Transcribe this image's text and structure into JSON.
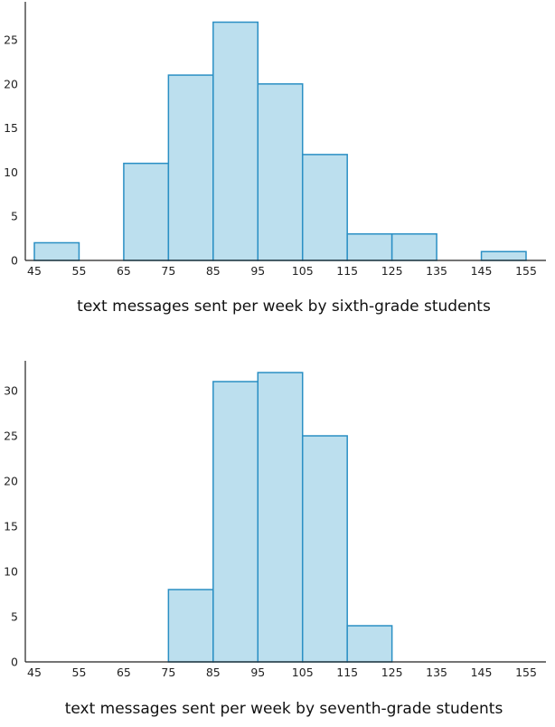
{
  "colors": {
    "bar_fill": "#bcdfee",
    "bar_stroke": "#2a8fc4",
    "axis": "#222222"
  },
  "chart_data": [
    {
      "type": "bar",
      "subtype": "histogram",
      "title": "",
      "xlabel": "text messages sent per week by sixth-grade students",
      "ylabel": "",
      "bin_edges": [
        45,
        55,
        65,
        75,
        85,
        95,
        105,
        115,
        125,
        135,
        145,
        155
      ],
      "x_ticks": [
        45,
        55,
        65,
        75,
        85,
        95,
        105,
        115,
        125,
        135,
        145,
        155
      ],
      "values": [
        2,
        0,
        11,
        21,
        27,
        20,
        12,
        3,
        3,
        0,
        1
      ],
      "y_ticks": [
        0,
        5,
        10,
        15,
        20,
        25
      ],
      "ylim": [
        0,
        29
      ],
      "grid": false
    },
    {
      "type": "bar",
      "subtype": "histogram",
      "title": "",
      "xlabel": "text messages sent per week by seventh-grade students",
      "ylabel": "",
      "bin_edges": [
        45,
        55,
        65,
        75,
        85,
        95,
        105,
        115,
        125,
        135,
        145,
        155
      ],
      "x_ticks": [
        45,
        55,
        65,
        75,
        85,
        95,
        105,
        115,
        125,
        135,
        145,
        155
      ],
      "values": [
        0,
        0,
        0,
        8,
        31,
        32,
        25,
        4,
        0,
        0,
        0
      ],
      "y_ticks": [
        0,
        5,
        10,
        15,
        20,
        25,
        30
      ],
      "ylim": [
        0,
        33
      ],
      "grid": false
    }
  ]
}
